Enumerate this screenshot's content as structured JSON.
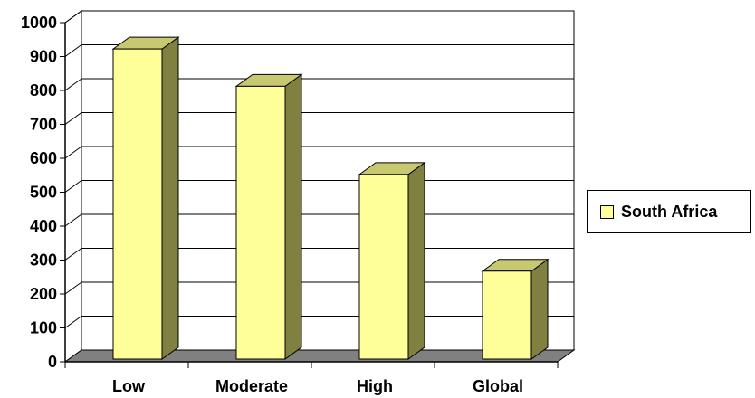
{
  "chart_data": {
    "type": "bar",
    "title": "",
    "xlabel": "",
    "ylabel": "",
    "categories": [
      "Low",
      "Moderate",
      "High",
      "Global"
    ],
    "series": [
      {
        "name": "South Africa",
        "values": [
          925,
          815,
          555,
          270
        ]
      }
    ],
    "ylim": [
      0,
      1000
    ],
    "yticks": [
      0,
      100,
      200,
      300,
      400,
      500,
      600,
      700,
      800,
      900,
      1000
    ],
    "ytick_labels": [
      "0",
      "100",
      "200",
      "300",
      "400",
      "500",
      "600",
      "700",
      "800",
      "900",
      "1000"
    ],
    "grid": true,
    "legend_position": "right",
    "style": "3d-column",
    "colors": {
      "bar_front": "#ffff99",
      "bar_side": "#808040",
      "bar_top": "#c8c870",
      "floor": "#808080",
      "axis": "#000000",
      "grid": "#000000"
    }
  }
}
